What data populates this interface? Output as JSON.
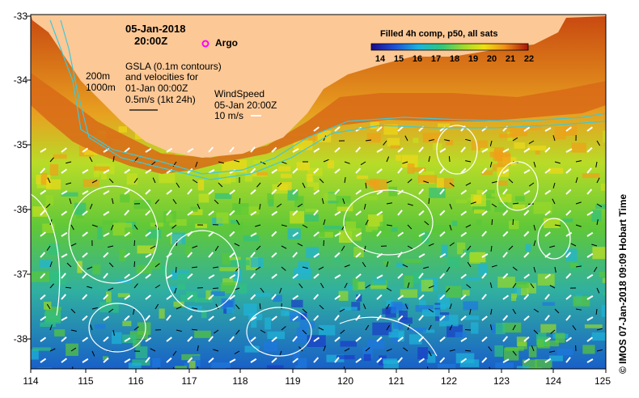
{
  "header": {
    "date": "05-Jan-2018",
    "time": "20:00Z",
    "argo_label": "Argo"
  },
  "legend": {
    "gsla_lines": [
      "GSLA (0.1m contours)",
      "and velocities for",
      "01-Jan 00:00Z",
      "0.5m/s (1kt 24h)"
    ],
    "depth_labels": [
      "200m",
      "1000m"
    ],
    "wind_lines": [
      "WindSpeed",
      "05-Jan 20:00Z",
      "10 m/s"
    ]
  },
  "colorbar": {
    "title": "Filled 4h comp, p50, all sats",
    "ticks": [
      "14",
      "15",
      "16",
      "17",
      "18",
      "19",
      "20",
      "21",
      "22"
    ]
  },
  "axes": {
    "lat_labels": [
      "-33",
      "-34",
      "-35",
      "-36",
      "-37",
      "-38"
    ],
    "lon_labels": [
      "114",
      "115",
      "116",
      "117",
      "118",
      "119",
      "120",
      "121",
      "122",
      "123",
      "124",
      "125"
    ]
  },
  "credit": "© IMOS 07-Jan-2018 09:09 Hobart Time",
  "colors": {
    "land": "#fcc896",
    "contour_white": "#ffffff",
    "bathy_cyan": "#40c8d8",
    "argo": "#ff00ff"
  }
}
